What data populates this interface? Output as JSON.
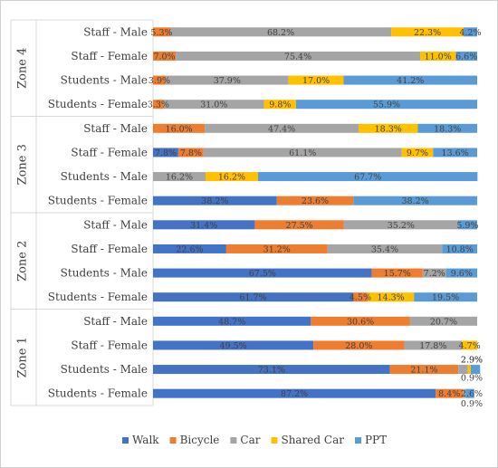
{
  "chart_data": {
    "type": "bar",
    "orientation": "horizontal",
    "stacked": "percent",
    "xlim": [
      0,
      100
    ],
    "grid": false,
    "legend_position": "bottom",
    "series": [
      {
        "name": "Walk",
        "color": "#4472C4"
      },
      {
        "name": "Bicycle",
        "color": "#ED7D31"
      },
      {
        "name": "Car",
        "color": "#A5A5A5"
      },
      {
        "name": "Shared Car",
        "color": "#FFC000"
      },
      {
        "name": "PPT",
        "color": "#5B9BD5"
      }
    ],
    "groups": [
      {
        "zone": "Zone 4",
        "rows": [
          {
            "category": "Staff - Male",
            "values": [
              0,
              5.3,
              68.2,
              22.3,
              4.2
            ],
            "labels": [
              "",
              "5.3%",
              "68.2%",
              "22.3%",
              "4.2%"
            ]
          },
          {
            "category": "Staff - Female",
            "values": [
              0,
              7.0,
              75.4,
              11.0,
              6.6
            ],
            "labels": [
              "",
              "7.0%",
              "75.4%",
              "11.0%",
              "6.6%"
            ]
          },
          {
            "category": "Students - Male",
            "values": [
              0,
              3.9,
              37.9,
              17.0,
              41.2
            ],
            "labels": [
              "",
              "3.9%",
              "37.9%",
              "17.0%",
              "41.2%"
            ]
          },
          {
            "category": "Students - Female",
            "values": [
              0,
              3.3,
              31.0,
              9.8,
              55.9
            ],
            "labels": [
              "",
              "3.3%",
              "31.0%",
              "9.8%",
              "55.9%"
            ]
          }
        ]
      },
      {
        "zone": "Zone 3",
        "rows": [
          {
            "category": "Staff - Male",
            "values": [
              0,
              16.0,
              47.4,
              18.3,
              18.3
            ],
            "labels": [
              "",
              "16.0%",
              "47.4%",
              "18.3%",
              "18.3%"
            ]
          },
          {
            "category": "Staff - Female",
            "values": [
              7.8,
              7.8,
              61.1,
              9.7,
              13.6
            ],
            "labels": [
              "7.8%",
              "7.8%",
              "61.1%",
              "9.7%",
              "13.6%"
            ]
          },
          {
            "category": "Students - Male",
            "values": [
              0,
              0,
              16.2,
              16.2,
              67.7
            ],
            "labels": [
              "",
              "",
              "16.2%",
              "16.2%",
              "67.7%"
            ]
          },
          {
            "category": "Students - Female",
            "values": [
              38.2,
              23.6,
              0,
              0,
              38.2
            ],
            "labels": [
              "38.2%",
              "23.6%",
              "",
              "",
              "38.2%"
            ]
          }
        ]
      },
      {
        "zone": "Zone 2",
        "rows": [
          {
            "category": "Staff - Male",
            "values": [
              31.4,
              27.5,
              35.2,
              0,
              5.9
            ],
            "labels": [
              "31.4%",
              "27.5%",
              "35.2%",
              "",
              "5.9%"
            ]
          },
          {
            "category": "Staff - Female",
            "values": [
              22.6,
              31.2,
              35.4,
              0,
              10.8
            ],
            "labels": [
              "22.6%",
              "31.2%",
              "35.4%",
              "",
              "10.8%"
            ]
          },
          {
            "category": "Students - Male",
            "values": [
              67.5,
              15.7,
              7.2,
              0,
              9.6
            ],
            "labels": [
              "67.5%",
              "15.7%",
              "7.2%",
              "",
              "9.6%"
            ]
          },
          {
            "category": "Students - Female",
            "values": [
              61.7,
              4.5,
              0,
              14.3,
              19.5
            ],
            "labels": [
              "61.7%",
              "4.5%",
              "",
              "14.3%",
              "19.5%"
            ]
          }
        ]
      },
      {
        "zone": "Zone 1",
        "rows": [
          {
            "category": "Staff - Male",
            "values": [
              48.7,
              30.6,
              20.7,
              0,
              0
            ],
            "labels": [
              "48.7%",
              "30.6%",
              "20.7%",
              "",
              ""
            ]
          },
          {
            "category": "Staff - Female",
            "values": [
              49.5,
              28.0,
              17.8,
              4.7,
              0
            ],
            "labels": [
              "49.5%",
              "28.0%",
              "17.8%",
              "4.7%",
              ""
            ]
          },
          {
            "category": "Students - Male",
            "values": [
              73.1,
              21.1,
              2.9,
              0.9,
              2.9
            ],
            "labels": [
              "73.1%",
              "21.1%",
              "2.9%",
              "0.9%",
              "2.9%"
            ]
          },
          {
            "category": "Students - Female",
            "values": [
              87.2,
              8.4,
              0.9,
              0,
              2.6
            ],
            "labels": [
              "87.2%",
              "8.4%",
              "0.9%",
              "",
              "2.6%"
            ]
          }
        ]
      }
    ]
  }
}
